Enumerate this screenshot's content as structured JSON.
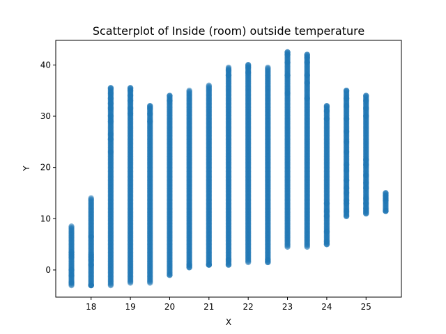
{
  "chart_data": {
    "type": "scatter",
    "title": "Scatterplot of Inside (room) outside temperature",
    "xlabel": "X",
    "ylabel": "Y",
    "xlim": [
      17.1,
      25.9
    ],
    "ylim": [
      -5.3,
      44.8
    ],
    "xticks": [
      18,
      19,
      20,
      21,
      22,
      23,
      24,
      25
    ],
    "yticks": [
      0,
      10,
      20,
      30,
      40
    ],
    "grid": false,
    "legend": "none",
    "marker_color": "#1f77b4",
    "marker_alpha": 0.6,
    "columns": [
      {
        "x": 17.5,
        "min": -3.0,
        "max": 8.5,
        "extras": [
          -2.5,
          -1.0,
          0.0,
          2.5,
          3.0,
          3.5
        ]
      },
      {
        "x": 18.0,
        "min": -3.0,
        "max": 14.0,
        "extras": [
          -3.0,
          -3.0,
          -3.0,
          1.0,
          2.0,
          2.5,
          3.0,
          6.5
        ]
      },
      {
        "x": 18.5,
        "min": -3.0,
        "max": 35.5,
        "extras": [
          23.0,
          25.5,
          26.5,
          29.0,
          30.0,
          31.5,
          32.5,
          33.5,
          34.5,
          35.5
        ]
      },
      {
        "x": 19.0,
        "min": -2.5,
        "max": 35.5,
        "extras": [
          30.5,
          31.5,
          33.0,
          34.0,
          35.0,
          35.5
        ]
      },
      {
        "x": 19.5,
        "min": -2.5,
        "max": 32.0,
        "extras": [
          29.0,
          30.5,
          31.5,
          32.0
        ]
      },
      {
        "x": 20.0,
        "min": -1.0,
        "max": 34.0,
        "extras": [
          -1.0,
          33.0,
          34.0
        ]
      },
      {
        "x": 20.5,
        "min": 0.5,
        "max": 35.0,
        "extras": [
          0.5,
          1.0
        ]
      },
      {
        "x": 21.0,
        "min": 1.0,
        "max": 36.0,
        "extras": [
          1.0,
          1.0
        ]
      },
      {
        "x": 21.5,
        "min": 1.0,
        "max": 39.5,
        "extras": [
          1.0,
          2.0,
          38.0,
          39.0
        ]
      },
      {
        "x": 22.0,
        "min": 1.5,
        "max": 40.0,
        "extras": [
          38.5,
          39.5,
          40.0
        ]
      },
      {
        "x": 22.5,
        "min": 1.5,
        "max": 39.5,
        "extras": [
          1.5,
          2.0
        ]
      },
      {
        "x": 23.0,
        "min": 4.5,
        "max": 42.5,
        "extras": [
          34.5,
          38.0,
          40.5,
          42.0,
          42.5
        ]
      },
      {
        "x": 23.5,
        "min": 4.5,
        "max": 42.0,
        "extras": [
          33.5,
          36.5,
          38.0,
          40.5,
          41.5,
          42.0
        ]
      },
      {
        "x": 24.0,
        "min": 5.0,
        "max": 32.0,
        "extras": [
          5.0,
          5.5,
          7.5,
          10.5,
          11.5,
          13.0,
          29.5,
          31.0,
          32.0
        ]
      },
      {
        "x": 24.5,
        "min": 10.5,
        "max": 35.0,
        "extras": [
          10.5,
          11.5,
          13.0,
          13.5,
          15.0,
          16.0,
          17.5,
          19.5,
          20.5,
          23.0,
          25.0,
          27.0,
          29.5,
          32.0,
          33.5,
          35.0
        ]
      },
      {
        "x": 25.0,
        "min": 11.0,
        "max": 34.0,
        "extras": [
          11.0,
          11.5,
          12.0,
          13.0,
          14.0,
          16.0,
          17.0,
          18.5,
          20.5,
          21.5,
          30.0,
          31.5,
          33.0,
          34.0
        ]
      },
      {
        "x": 25.5,
        "min": 11.5,
        "max": 15.0,
        "extras": [
          11.5,
          11.5,
          13.5,
          14.0,
          14.5,
          15.0
        ]
      }
    ]
  }
}
